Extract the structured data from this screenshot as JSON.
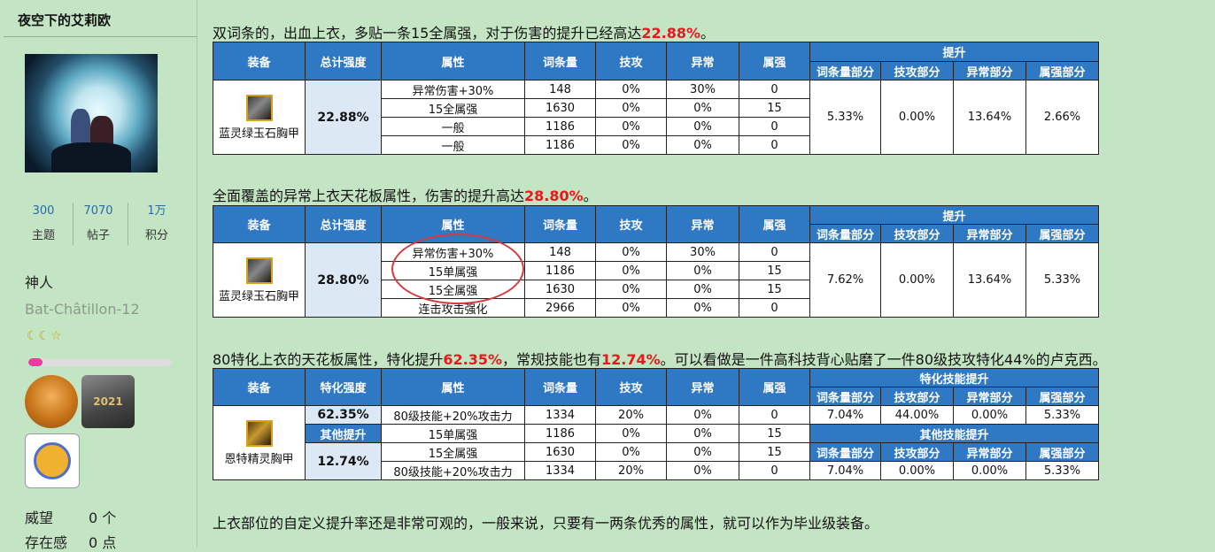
{
  "sidebar": {
    "username": "夜空下的艾莉欧",
    "stats": [
      {
        "value": "300",
        "label": "主题"
      },
      {
        "value": "7070",
        "label": "帖子"
      },
      {
        "value": "1万",
        "label": "积分"
      }
    ],
    "rank": "神人",
    "subtitle": "Bat-Châtillon-12",
    "moons": "☾☾☆",
    "progress_fraction": 0.1,
    "medal2_text": "2021",
    "reputation_label": "威望",
    "reputation_value": "0 个",
    "presence_label": "存在感",
    "presence_value": "0 点"
  },
  "sections": [
    {
      "para_pre": "双词条的，出血上衣，多贴一条15全属强，对于伤害的提升已经高达",
      "para_hl": "22.88%",
      "para_post": "。",
      "headers": {
        "equip": "装备",
        "total": "总计强度",
        "attr": "属性",
        "count": "词条量",
        "skill": "技攻",
        "abn": "异常",
        "elem": "属强",
        "boost": "提升",
        "sub": [
          "词条量部分",
          "技攻部分",
          "异常部分",
          "属强部分"
        ]
      },
      "equip": "蓝灵绿玉石胸甲",
      "total": "22.88%",
      "rows": [
        [
          "异常伤害+30%",
          "148",
          "0%",
          "30%",
          "0"
        ],
        [
          "15全属强",
          "1630",
          "0%",
          "0%",
          "15"
        ],
        [
          "一般",
          "1186",
          "0%",
          "0%",
          "0"
        ],
        [
          "一般",
          "1186",
          "0%",
          "0%",
          "0"
        ]
      ],
      "boost": [
        "5.33%",
        "0.00%",
        "13.64%",
        "2.66%"
      ]
    },
    {
      "para_pre": "全面覆盖的异常上衣天花板属性，伤害的提升高达",
      "para_hl": "28.80%",
      "para_post": "。",
      "headers": {
        "equip": "装备",
        "total": "总计强度",
        "attr": "属性",
        "count": "词条量",
        "skill": "技攻",
        "abn": "异常",
        "elem": "属强",
        "boost": "提升",
        "sub": [
          "词条量部分",
          "技攻部分",
          "异常部分",
          "属强部分"
        ]
      },
      "equip": "蓝灵绿玉石胸甲",
      "total": "28.80%",
      "rows": [
        [
          "异常伤害+30%",
          "148",
          "0%",
          "30%",
          "0"
        ],
        [
          "15单属强",
          "1186",
          "0%",
          "0%",
          "15"
        ],
        [
          "15全属强",
          "1630",
          "0%",
          "0%",
          "15"
        ],
        [
          "连击攻击强化",
          "2966",
          "0%",
          "0%",
          "0"
        ]
      ],
      "boost": [
        "7.62%",
        "0.00%",
        "13.64%",
        "5.33%"
      ]
    },
    {
      "para_pre": "80特化上衣的天花板属性，特化提升",
      "para_hl": "62.35%",
      "para_mid": "，常规技能也有",
      "para_hl2": "12.74%",
      "para_post": "。可以看做是一件高科技背心贴磨了一件80级技攻特化44%的卢克西。",
      "headers": {
        "equip": "装备",
        "total": "特化强度",
        "attr": "属性",
        "count": "词条量",
        "skill": "技攻",
        "abn": "异常",
        "elem": "属强",
        "boost": "特化技能提升",
        "boost2": "其他技能提升",
        "sub": [
          "词条量部分",
          "技攻部分",
          "异常部分",
          "属强部分"
        ]
      },
      "equip": "恩特精灵胸甲",
      "total": "62.35%",
      "other_label": "其他提升",
      "total2": "12.74%",
      "rows": [
        [
          "80级技能+20%攻击力",
          "1334",
          "20%",
          "0%",
          "0"
        ],
        [
          "15单属强",
          "1186",
          "0%",
          "0%",
          "15"
        ],
        [
          "15全属强",
          "1630",
          "0%",
          "0%",
          "15"
        ],
        [
          "80级技能+20%攻击力",
          "1334",
          "20%",
          "0%",
          "0"
        ]
      ],
      "boost": [
        "7.04%",
        "44.00%",
        "0.00%",
        "5.33%"
      ],
      "boost2": [
        "7.04%",
        "0.00%",
        "0.00%",
        "5.33%"
      ]
    }
  ],
  "footer_text": "上衣部位的自定义提升率还是非常可观的，一般来说，只要有一两条优秀的属性，就可以作为毕业级装备。"
}
